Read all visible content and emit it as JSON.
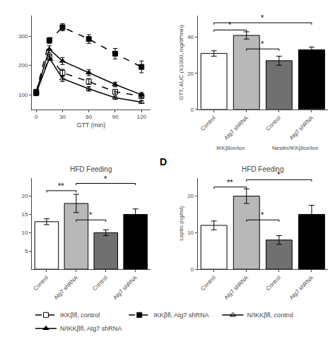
{
  "chart_data": [
    {
      "type": "line",
      "x": [
        0,
        15,
        30,
        60,
        90,
        120
      ],
      "xlabel": "GTT (min)",
      "xlim": [
        -5,
        130
      ],
      "xticks": [
        0,
        30,
        60,
        90,
        120
      ],
      "ylim": [
        50,
        370
      ],
      "yticks": [
        100,
        200,
        300
      ],
      "grid": false,
      "legend": "bottom",
      "series": [
        {
          "name": "IKKβfl, control",
          "color": "#000000",
          "marker": "square-open",
          "line_style": "dashed",
          "values": [
            105,
            230,
            175,
            145,
            110,
            95
          ],
          "yerr": [
            5,
            8,
            12,
            10,
            8,
            7
          ]
        },
        {
          "name": "IKKβfl, Atg7 shRNA",
          "color": "#000000",
          "marker": "square",
          "line_style": "dashed",
          "values": [
            110,
            285,
            330,
            290,
            240,
            195
          ],
          "yerr": [
            5,
            10,
            12,
            15,
            18,
            20
          ]
        },
        {
          "name": "N/IKKβfl, control",
          "color": "#000000",
          "marker": "triangle-up-open",
          "line_style": "solid",
          "values": [
            105,
            225,
            155,
            120,
            90,
            75
          ],
          "yerr": [
            5,
            8,
            10,
            8,
            6,
            5
          ]
        },
        {
          "name": "N/IKKβfl, Atg7 shRNA",
          "color": "#000000",
          "marker": "triangle-up",
          "line_style": "solid",
          "values": [
            110,
            255,
            215,
            175,
            135,
            100
          ],
          "yerr": [
            5,
            12,
            12,
            10,
            8,
            8
          ]
        }
      ]
    },
    {
      "type": "bar",
      "ylabel": "GTT, AUC (X1000, mg/dl*min)",
      "categories": [
        "Control",
        "Atg7 shRNA",
        "Control",
        "Atg7 shRNA"
      ],
      "groups": [
        "IKKβlox/lox",
        "IKKβlox/lox",
        "Nestin/IKKβlox/lox",
        "Nestin/IKKβlox/lox"
      ],
      "values": [
        31,
        41,
        27,
        33
      ],
      "yerr": [
        1.5,
        2.0,
        2.5,
        1.5
      ],
      "colors": [
        "#ffffff",
        "#b8b8b8",
        "#707070",
        "#000000"
      ],
      "ylim": [
        0,
        52
      ],
      "yticks": [
        0,
        20,
        40
      ],
      "grid": false,
      "annotations": [
        {
          "text": "*",
          "x0": 0,
          "x1": 1,
          "y": 44
        },
        {
          "text": "*",
          "x0": 1,
          "x1": 2,
          "y": 33.5
        },
        {
          "text": "*",
          "x0": 0,
          "x1": 3,
          "y": 48
        }
      ]
    },
    {
      "type": "bar",
      "title": "HFD Feeding",
      "categories": [
        "Control",
        "Atg7 shRNA",
        "Control",
        "Atg7 shRNA"
      ],
      "values": [
        13,
        18,
        10,
        15
      ],
      "yerr": [
        0.8,
        2.5,
        0.8,
        1.5
      ],
      "colors": [
        "#ffffff",
        "#b8b8b8",
        "#707070",
        "#000000"
      ],
      "ylim": [
        0,
        25
      ],
      "yticks": [
        5,
        10,
        15,
        20
      ],
      "grid": false,
      "annotations": [
        {
          "text": "**",
          "x0": 0,
          "x1": 1,
          "y": 21.5
        },
        {
          "text": "*",
          "x0": 1,
          "x1": 3,
          "y": 23.5
        },
        {
          "text": "*",
          "x0": 1,
          "x1": 2,
          "y": 13.5
        }
      ]
    },
    {
      "type": "bar",
      "title": "HFD Feeding",
      "ylabel": "Leptin (ng/ml)",
      "categories": [
        "Control",
        "Atg7 shRNA",
        "Control",
        "Atg7 shRNA"
      ],
      "values": [
        12,
        20,
        8,
        15
      ],
      "yerr": [
        1.2,
        2.0,
        1.2,
        2.5
      ],
      "colors": [
        "#ffffff",
        "#b8b8b8",
        "#707070",
        "#000000"
      ],
      "ylim": [
        0,
        25
      ],
      "yticks": [
        0,
        10,
        20
      ],
      "grid": false,
      "annotations": [
        {
          "text": "**",
          "x0": 0,
          "x1": 1,
          "y": 22.5
        },
        {
          "text": "*",
          "x0": 1,
          "x1": 3,
          "y": 24.5
        },
        {
          "text": "*",
          "x0": 1,
          "x1": 2,
          "y": 13.5
        },
        {
          "text": "D"
        }
      ]
    }
  ]
}
